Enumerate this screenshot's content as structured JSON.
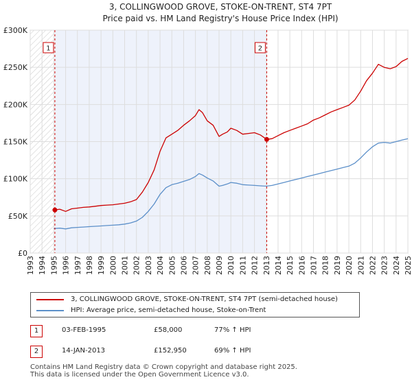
{
  "chart_data": {
    "type": "line",
    "title": "3, COLLINGWOOD GROVE, STOKE-ON-TRENT, ST4 7PT",
    "subtitle": "Price paid vs. HM Land Registry's House Price Index (HPI)",
    "ylim": [
      0,
      300000
    ],
    "xlim": [
      1993,
      2025
    ],
    "yticks": [
      0,
      50000,
      100000,
      150000,
      200000,
      250000,
      300000
    ],
    "ytick_labels": [
      "£0",
      "£50K",
      "£100K",
      "£150K",
      "£200K",
      "£250K",
      "£300K"
    ],
    "xticks": [
      "1993",
      "1994",
      "1995",
      "1996",
      "1997",
      "1998",
      "1999",
      "2000",
      "2001",
      "2002",
      "2003",
      "2004",
      "2005",
      "2006",
      "2007",
      "2008",
      "2009",
      "2010",
      "2011",
      "2012",
      "2013",
      "2014",
      "2015",
      "2016",
      "2017",
      "2018",
      "2019",
      "2020",
      "2021",
      "2022",
      "2023",
      "2024",
      "2025"
    ],
    "series": [
      {
        "name": "3, COLLINGWOOD GROVE, STOKE-ON-TRENT, ST4 7PT (semi-detached house)",
        "color": "#cc0000",
        "x": [
          1995.09,
          1995.5,
          1996,
          1996.5,
          1997,
          1997.5,
          1998,
          1998.5,
          1999,
          1999.5,
          2000,
          2000.5,
          2001,
          2001.5,
          2002,
          2002.5,
          2003,
          2003.5,
          2004,
          2004.5,
          2005,
          2005.5,
          2006,
          2006.5,
          2007,
          2007.3,
          2007.6,
          2008,
          2008.5,
          2009,
          2009.3,
          2009.7,
          2010,
          2010.5,
          2011,
          2011.5,
          2012,
          2012.5,
          2013.04,
          2013.5,
          2014,
          2014.5,
          2015,
          2015.5,
          2016,
          2016.5,
          2017,
          2017.5,
          2018,
          2018.5,
          2019,
          2019.5,
          2020,
          2020.5,
          2021,
          2021.5,
          2022,
          2022.5,
          2023,
          2023.5,
          2024,
          2024.5,
          2025
        ],
        "values": [
          58000,
          59000,
          56000,
          59500,
          60500,
          61500,
          62000,
          63000,
          64000,
          64500,
          65000,
          66000,
          67000,
          69000,
          72000,
          82000,
          95000,
          112000,
          137000,
          155000,
          160000,
          165000,
          172000,
          178000,
          185000,
          193000,
          189000,
          178000,
          172000,
          157000,
          160000,
          163000,
          168000,
          165000,
          160000,
          161000,
          162000,
          159000,
          152950,
          154000,
          158000,
          162000,
          165000,
          168000,
          171000,
          174000,
          179000,
          182000,
          186000,
          190000,
          193000,
          196000,
          199000,
          206000,
          218000,
          232000,
          242000,
          254000,
          250000,
          248000,
          251000,
          258000,
          262000
        ]
      },
      {
        "name": "HPI: Average price, semi-detached house, Stoke-on-Trent",
        "color": "#5b8fc9",
        "x": [
          1995,
          1995.5,
          1996,
          1996.5,
          1997,
          1997.5,
          1998,
          1998.5,
          1999,
          1999.5,
          2000,
          2000.5,
          2001,
          2001.5,
          2002,
          2002.5,
          2003,
          2003.5,
          2004,
          2004.5,
          2005,
          2005.5,
          2006,
          2006.5,
          2007,
          2007.3,
          2007.6,
          2008,
          2008.5,
          2009,
          2009.3,
          2009.7,
          2010,
          2010.5,
          2011,
          2011.5,
          2012,
          2012.5,
          2013,
          2013.5,
          2014,
          2014.5,
          2015,
          2015.5,
          2016,
          2016.5,
          2017,
          2017.5,
          2018,
          2018.5,
          2019,
          2019.5,
          2020,
          2020.5,
          2021,
          2021.5,
          2022,
          2022.5,
          2023,
          2023.5,
          2024,
          2024.5,
          2025
        ],
        "values": [
          33000,
          33500,
          32500,
          34000,
          34500,
          35000,
          35500,
          36000,
          36500,
          37000,
          37500,
          38000,
          39000,
          40500,
          43000,
          48000,
          56000,
          66000,
          79000,
          88000,
          92000,
          94000,
          96500,
          99000,
          103000,
          107000,
          105000,
          101000,
          97000,
          90000,
          91000,
          93000,
          95000,
          94000,
          92000,
          91500,
          91000,
          90500,
          90000,
          91000,
          93000,
          95000,
          97000,
          99000,
          101000,
          103000,
          105000,
          107000,
          109000,
          111000,
          113000,
          115000,
          117000,
          121000,
          128000,
          136000,
          143000,
          148000,
          149000,
          148000,
          150000,
          152000,
          154000
        ]
      }
    ],
    "annotations": [
      {
        "label": "1",
        "x": 1995.09,
        "value": 58000
      },
      {
        "label": "2",
        "x": 2013.04,
        "value": 152950
      }
    ]
  },
  "legend": {
    "property_label": "3, COLLINGWOOD GROVE, STOKE-ON-TRENT, ST4 7PT (semi-detached house)",
    "hpi_label": "HPI: Average price, semi-detached house, Stoke-on-Trent",
    "property_color": "#cc0000",
    "hpi_color": "#5b8fc9"
  },
  "transactions": [
    {
      "num": "1",
      "date": "03-FEB-1995",
      "price": "£58,000",
      "hpi": "77% ↑ HPI"
    },
    {
      "num": "2",
      "date": "14-JAN-2013",
      "price": "£152,950",
      "hpi": "69% ↑ HPI"
    }
  ],
  "footer": {
    "line1": "Contains HM Land Registry data © Crown copyright and database right 2025.",
    "line2": "This data is licensed under the Open Government Licence v3.0."
  }
}
